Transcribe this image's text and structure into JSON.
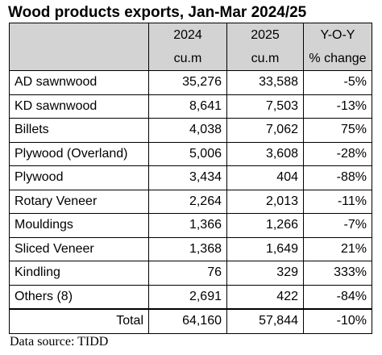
{
  "chart_data": {
    "type": "table",
    "title": "Wood products exports, Jan-Mar 2024/25",
    "columns": [
      {
        "header": "2024",
        "unit": "cu.m"
      },
      {
        "header": "2025",
        "unit": "cu.m"
      },
      {
        "header": "Y-O-Y",
        "unit": "% change"
      }
    ],
    "rows": [
      {
        "label": "AD sawnwood",
        "v2024": "35,276",
        "v2025": "33,588",
        "yoy": "-5%"
      },
      {
        "label": "KD sawnwood",
        "v2024": "8,641",
        "v2025": "7,503",
        "yoy": "-13%"
      },
      {
        "label": "Billets",
        "v2024": "4,038",
        "v2025": "7,062",
        "yoy": "75%"
      },
      {
        "label": "Plywood (Overland)",
        "v2024": "5,006",
        "v2025": "3,608",
        "yoy": "-28%"
      },
      {
        "label": "Plywood",
        "v2024": "3,434",
        "v2025": "404",
        "yoy": "-88%"
      },
      {
        "label": "Rotary Veneer",
        "v2024": "2,264",
        "v2025": "2,013",
        "yoy": "-11%"
      },
      {
        "label": "Mouldings",
        "v2024": "1,366",
        "v2025": "1,266",
        "yoy": "-7%"
      },
      {
        "label": "Sliced Veneer",
        "v2024": "1,368",
        "v2025": "1,649",
        "yoy": "21%"
      },
      {
        "label": "Kindling",
        "v2024": "76",
        "v2025": "329",
        "yoy": "333%"
      },
      {
        "label": "Others (8)",
        "v2024": "2,691",
        "v2025": "422",
        "yoy": "-84%"
      }
    ],
    "total": {
      "label": "Total",
      "v2024": "64,160",
      "v2025": "57,844",
      "yoy": "-10%"
    }
  },
  "source": "Data source: TIDD",
  "colors": {
    "header_background": "#d3d3d3",
    "text": "#000000",
    "border": "#000000"
  }
}
